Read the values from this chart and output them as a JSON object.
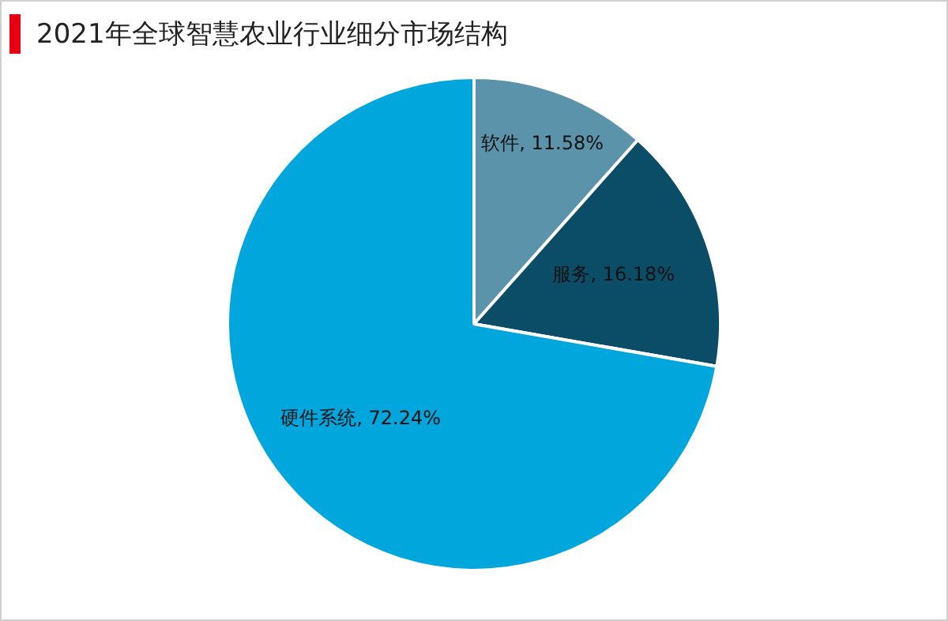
{
  "chart_data": {
    "type": "pie",
    "title": "2021年全球智慧农业行业细分市场结构",
    "categories": [
      "软件",
      "服务",
      "硬件系统"
    ],
    "values": [
      11.58,
      16.18,
      72.24
    ],
    "colors": [
      "#5b93ab",
      "#0b4d66",
      "#00a6dc"
    ],
    "value_labels": [
      "11.58%",
      "16.18%",
      "72.24%"
    ],
    "legend": false
  }
}
